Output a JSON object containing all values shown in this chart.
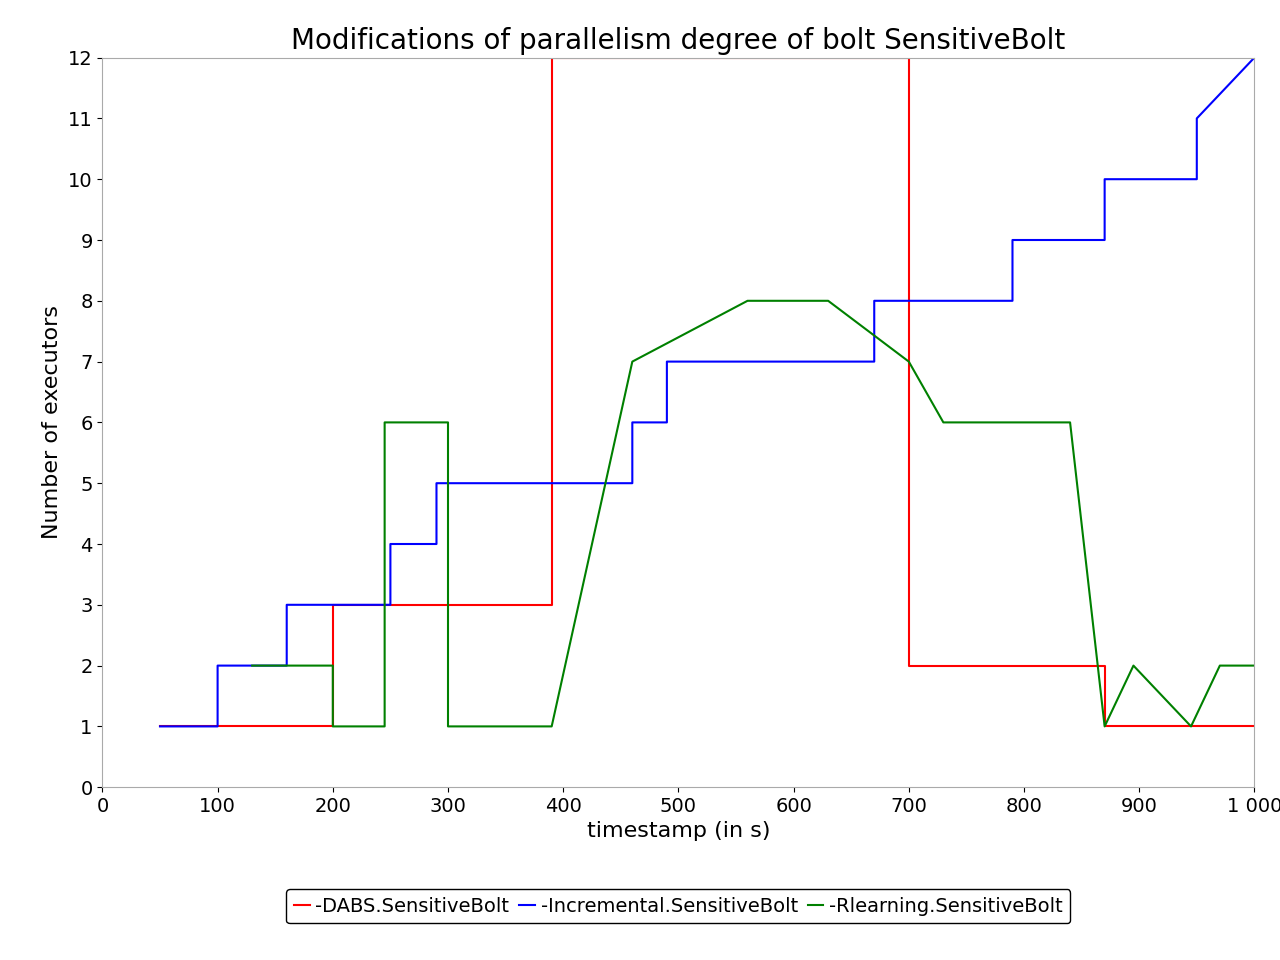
{
  "title": "Modifications of parallelism degree of bolt SensitiveBolt",
  "xlabel": "timestamp (in s)",
  "ylabel": "Number of executors",
  "xlim": [
    0,
    1000
  ],
  "ylim": [
    0,
    12
  ],
  "yticks": [
    0,
    1,
    2,
    3,
    4,
    5,
    6,
    7,
    8,
    9,
    10,
    11,
    12
  ],
  "xticks": [
    0,
    100,
    200,
    300,
    400,
    500,
    600,
    700,
    800,
    900,
    1000
  ],
  "red_x": [
    50,
    200,
    200,
    390,
    390,
    630,
    630,
    700,
    700,
    870,
    870,
    1000
  ],
  "red_y": [
    1,
    1,
    3,
    3,
    12,
    12,
    12,
    12,
    2,
    2,
    1,
    1
  ],
  "blue_x": [
    50,
    100,
    100,
    160,
    160,
    250,
    250,
    290,
    290,
    460,
    460,
    490,
    490,
    670,
    670,
    790,
    790,
    870,
    870,
    950,
    950,
    1000
  ],
  "blue_y": [
    1,
    1,
    2,
    2,
    3,
    3,
    4,
    4,
    5,
    5,
    6,
    6,
    7,
    7,
    8,
    8,
    9,
    9,
    10,
    10,
    11,
    12
  ],
  "green_x": [
    130,
    160,
    160,
    200,
    200,
    245,
    245,
    300,
    300,
    390,
    390,
    460,
    460,
    560,
    560,
    630,
    630,
    700,
    700,
    730,
    730,
    840,
    840,
    870,
    870,
    895,
    895,
    945,
    945,
    970,
    970,
    1000
  ],
  "green_y": [
    2,
    2,
    2,
    2,
    1,
    1,
    6,
    6,
    1,
    1,
    1,
    7,
    7,
    8,
    8,
    8,
    8,
    7,
    7,
    6,
    6,
    6,
    6,
    1,
    1,
    2,
    2,
    1,
    1,
    2,
    2,
    2
  ],
  "red_color": "#ff0000",
  "blue_color": "#0000ff",
  "green_color": "#008000",
  "legend_labels": [
    "DABS.SensitiveBolt",
    "Incremental.SensitiveBolt",
    "Rlearning.SensitiveBolt"
  ],
  "background": "#ffffff",
  "title_fontsize": 20,
  "label_fontsize": 16,
  "tick_fontsize": 14,
  "legend_fontsize": 14
}
